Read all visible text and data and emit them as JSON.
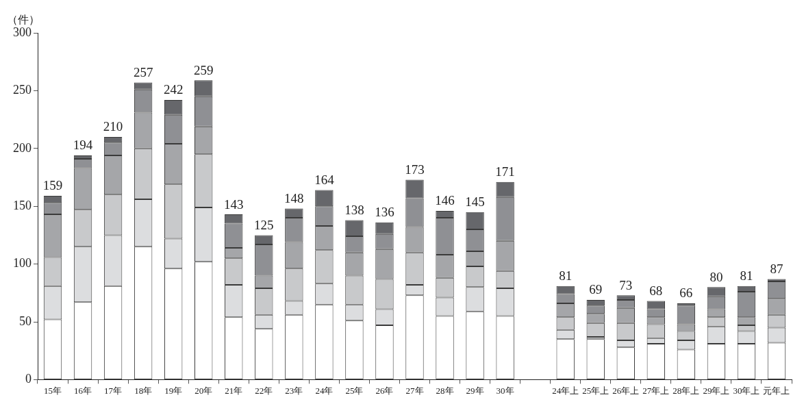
{
  "chart_data": {
    "type": "bar",
    "ylabel": "（件）",
    "stacked": true,
    "legend": false,
    "grid": false,
    "categories": [
      "15年",
      "16年",
      "17年",
      "18年",
      "19年",
      "20年",
      "21年",
      "22年",
      "23年",
      "24年",
      "25年",
      "26年",
      "27年",
      "28年",
      "29年",
      "30年",
      null,
      "24年上",
      "25年上",
      "26年上",
      "27年上",
      "28年上",
      "29年上",
      "30年上",
      "元年上"
    ],
    "ylim": [
      0,
      300
    ],
    "yticks": [
      0,
      50,
      100,
      150,
      200,
      250,
      300
    ],
    "series": [
      {
        "color": "#ffffff",
        "values": [
          52,
          67,
          81,
          115,
          96,
          102,
          54,
          44,
          56,
          65,
          51,
          47,
          73,
          55,
          59,
          55,
          null,
          35,
          35,
          28,
          31,
          26,
          31,
          31,
          32
        ]
      },
      {
        "color": "#dcdddf",
        "values": [
          29,
          48,
          44,
          41,
          26,
          47,
          28,
          12,
          12,
          18,
          14,
          14,
          9,
          16,
          21,
          24,
          null,
          8,
          2,
          6,
          5,
          8,
          15,
          11,
          13
        ]
      },
      {
        "color": "#c8c9cb",
        "values": [
          25,
          32,
          35,
          44,
          47,
          46,
          23,
          23,
          28,
          29,
          25,
          26,
          28,
          17,
          18,
          15,
          null,
          11,
          12,
          15,
          12,
          8,
          8,
          5,
          11
        ]
      },
      {
        "color": "#a5a6a9",
        "values": [
          37,
          36,
          34,
          31,
          35,
          24,
          9,
          11,
          23,
          21,
          20,
          26,
          22,
          20,
          13,
          26,
          null,
          12,
          8,
          13,
          6,
          6,
          7,
          7,
          14
        ]
      },
      {
        "color": "#8f9094",
        "values": [
          10,
          8,
          11,
          20,
          25,
          26,
          21,
          27,
          21,
          17,
          14,
          13,
          25,
          32,
          19,
          38,
          null,
          8,
          7,
          7,
          7,
          16,
          11,
          22,
          15
        ]
      },
      {
        "color": "#66676b",
        "values": [
          6,
          3,
          5,
          6,
          13,
          14,
          8,
          8,
          8,
          14,
          14,
          10,
          16,
          6,
          15,
          13,
          null,
          7,
          5,
          4,
          7,
          2,
          8,
          5,
          2
        ]
      }
    ],
    "totals": [
      "159",
      "194",
      "210",
      "257",
      "242",
      "259",
      "143",
      "125",
      "148",
      "164",
      "138",
      "136",
      "173",
      "146",
      "145",
      "171",
      null,
      "81",
      "69",
      "73",
      "68",
      "66",
      "80",
      "81",
      "87"
    ]
  }
}
